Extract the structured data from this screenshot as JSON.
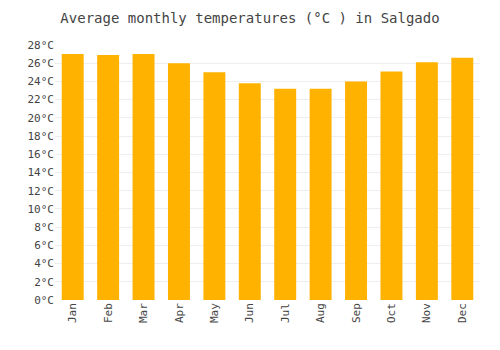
{
  "chart_data": {
    "type": "bar",
    "title": "Average monthly temperatures (°C ) in Salgado",
    "categories": [
      "Jan",
      "Feb",
      "Mar",
      "Apr",
      "May",
      "Jun",
      "Jul",
      "Aug",
      "Sep",
      "Oct",
      "Nov",
      "Dec"
    ],
    "values": [
      27.0,
      26.9,
      27.0,
      26.0,
      25.0,
      23.8,
      23.2,
      23.2,
      24.0,
      25.1,
      26.1,
      26.6
    ],
    "color": "#FFB300",
    "ylim": [
      0,
      28
    ],
    "yticks": [
      {
        "value": 0,
        "label": "0°C"
      },
      {
        "value": 2,
        "label": "2°C"
      },
      {
        "value": 4,
        "label": "4°C"
      },
      {
        "value": 6,
        "label": "6°C"
      },
      {
        "value": 8,
        "label": "8°C"
      },
      {
        "value": 10,
        "label": "10°C"
      },
      {
        "value": 12,
        "label": "12°C"
      },
      {
        "value": 14,
        "label": "14°C"
      },
      {
        "value": 16,
        "label": "16°C"
      },
      {
        "value": 18,
        "label": "18°C"
      },
      {
        "value": 20,
        "label": "20°C"
      },
      {
        "value": 22,
        "label": "22°C"
      },
      {
        "value": 24,
        "label": "24°C"
      },
      {
        "value": 26,
        "label": "26°C"
      },
      {
        "value": 28,
        "label": "28°C"
      }
    ],
    "grid": true
  }
}
